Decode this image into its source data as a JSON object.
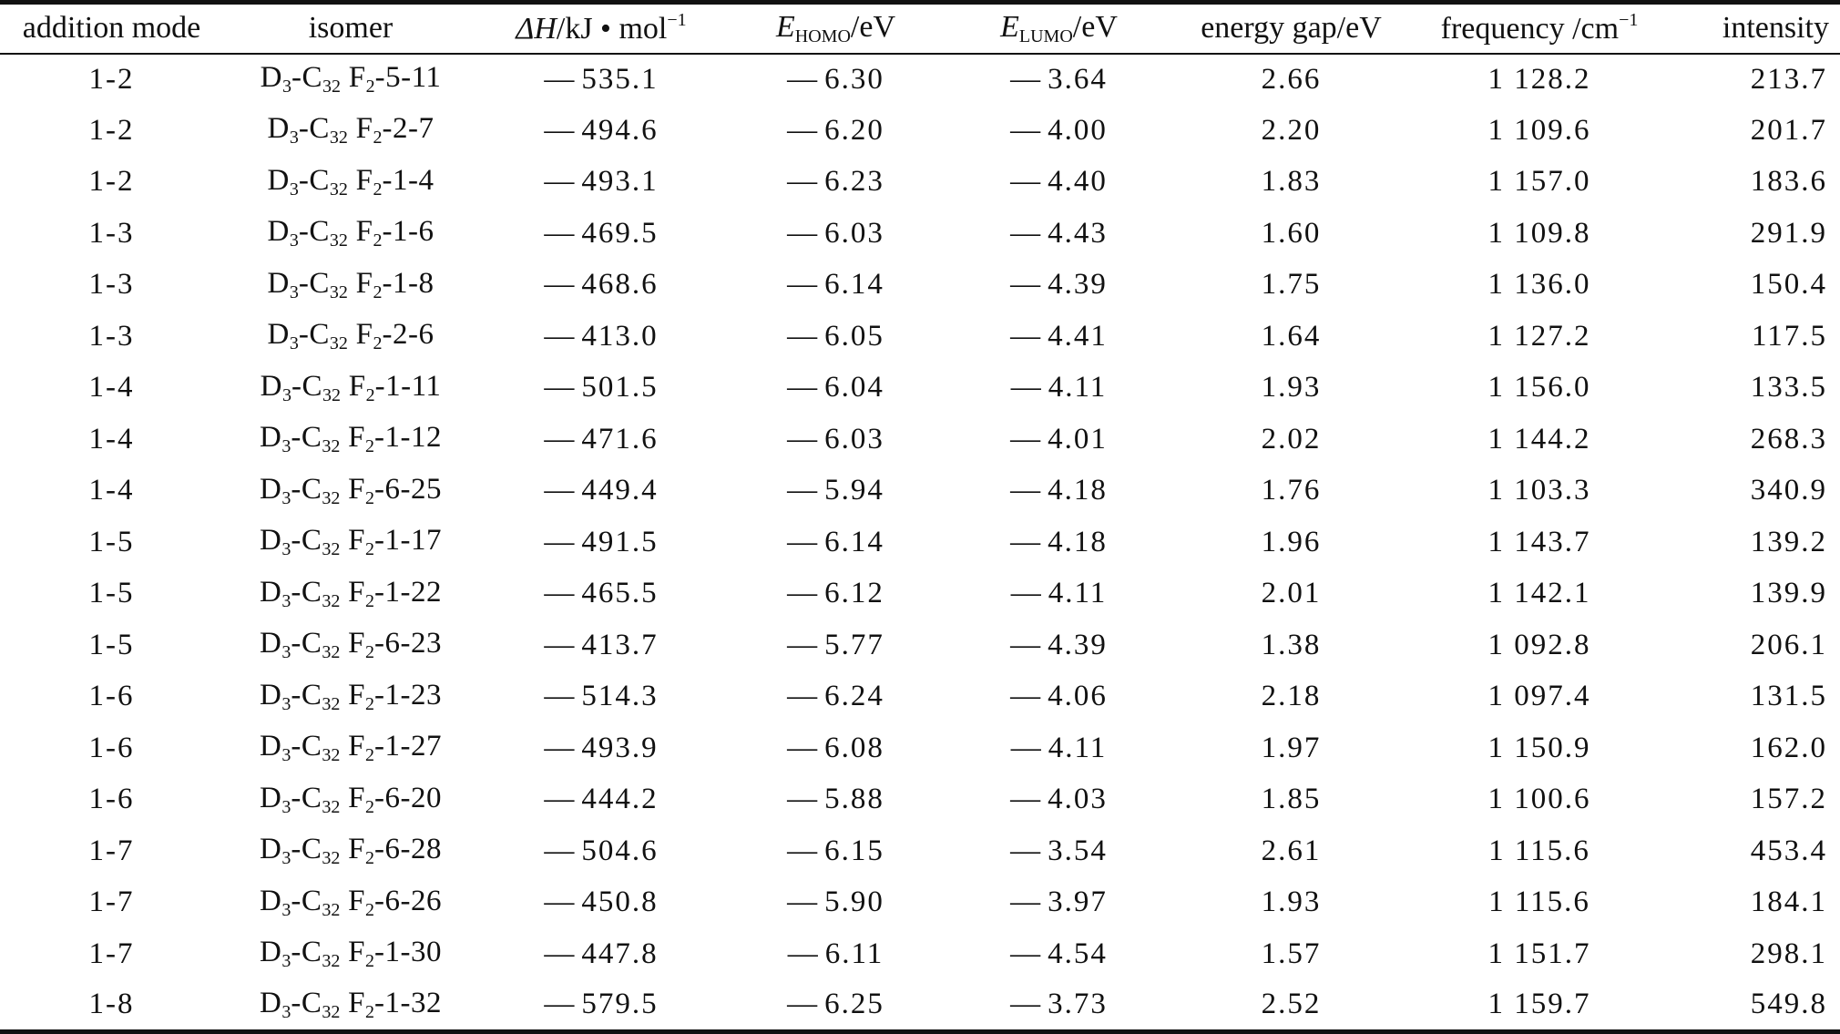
{
  "table": {
    "headers": {
      "addition_mode": "addition mode",
      "isomer": "isomer",
      "dh": {
        "symbol": "ΔH",
        "unit": "/kJ • mol",
        "sup": "−1"
      },
      "homo": {
        "symbol": "E",
        "sub": "HOMO",
        "unit": "/eV"
      },
      "lumo": {
        "symbol": "E",
        "sub": "LUMO",
        "unit": "/eV"
      },
      "gap": "energy gap/eV",
      "freq": {
        "label": "frequency /cm",
        "sup": "−1"
      },
      "intensity": "intensity"
    },
    "isomer_prefix": {
      "d": "D",
      "d_sub": "3",
      "c": "-C",
      "c_sub": "32",
      "f": " F",
      "f_sub": "2"
    },
    "minus_sign": "—",
    "rows": [
      {
        "mode": "1-2",
        "isomer_suffix": "-5-11",
        "dh": "535.1",
        "homo": "6.30",
        "lumo": "3.64",
        "gap": "2.66",
        "freq": "1 128.2",
        "intensity": "213.7"
      },
      {
        "mode": "1-2",
        "isomer_suffix": "-2-7",
        "dh": "494.6",
        "homo": "6.20",
        "lumo": "4.00",
        "gap": "2.20",
        "freq": "1 109.6",
        "intensity": "201.7"
      },
      {
        "mode": "1-2",
        "isomer_suffix": "-1-4",
        "dh": "493.1",
        "homo": "6.23",
        "lumo": "4.40",
        "gap": "1.83",
        "freq": "1 157.0",
        "intensity": "183.6"
      },
      {
        "mode": "1-3",
        "isomer_suffix": "-1-6",
        "dh": "469.5",
        "homo": "6.03",
        "lumo": "4.43",
        "gap": "1.60",
        "freq": "1 109.8",
        "intensity": "291.9"
      },
      {
        "mode": "1-3",
        "isomer_suffix": "-1-8",
        "dh": "468.6",
        "homo": "6.14",
        "lumo": "4.39",
        "gap": "1.75",
        "freq": "1 136.0",
        "intensity": "150.4"
      },
      {
        "mode": "1-3",
        "isomer_suffix": "-2-6",
        "dh": "413.0",
        "homo": "6.05",
        "lumo": "4.41",
        "gap": "1.64",
        "freq": "1 127.2",
        "intensity": "117.5"
      },
      {
        "mode": "1-4",
        "isomer_suffix": "-1-11",
        "dh": "501.5",
        "homo": "6.04",
        "lumo": "4.11",
        "gap": "1.93",
        "freq": "1 156.0",
        "intensity": "133.5"
      },
      {
        "mode": "1-4",
        "isomer_suffix": "-1-12",
        "dh": "471.6",
        "homo": "6.03",
        "lumo": "4.01",
        "gap": "2.02",
        "freq": "1 144.2",
        "intensity": "268.3"
      },
      {
        "mode": "1-4",
        "isomer_suffix": "-6-25",
        "dh": "449.4",
        "homo": "5.94",
        "lumo": "4.18",
        "gap": "1.76",
        "freq": "1 103.3",
        "intensity": "340.9"
      },
      {
        "mode": "1-5",
        "isomer_suffix": "-1-17",
        "dh": "491.5",
        "homo": "6.14",
        "lumo": "4.18",
        "gap": "1.96",
        "freq": "1 143.7",
        "intensity": "139.2"
      },
      {
        "mode": "1-5",
        "isomer_suffix": "-1-22",
        "dh": "465.5",
        "homo": "6.12",
        "lumo": "4.11",
        "gap": "2.01",
        "freq": "1 142.1",
        "intensity": "139.9"
      },
      {
        "mode": "1-5",
        "isomer_suffix": "-6-23",
        "dh": "413.7",
        "homo": "5.77",
        "lumo": "4.39",
        "gap": "1.38",
        "freq": "1 092.8",
        "intensity": "206.1"
      },
      {
        "mode": "1-6",
        "isomer_suffix": "-1-23",
        "dh": "514.3",
        "homo": "6.24",
        "lumo": "4.06",
        "gap": "2.18",
        "freq": "1 097.4",
        "intensity": "131.5"
      },
      {
        "mode": "1-6",
        "isomer_suffix": "-1-27",
        "dh": "493.9",
        "homo": "6.08",
        "lumo": "4.11",
        "gap": "1.97",
        "freq": "1 150.9",
        "intensity": "162.0"
      },
      {
        "mode": "1-6",
        "isomer_suffix": "-6-20",
        "dh": "444.2",
        "homo": "5.88",
        "lumo": "4.03",
        "gap": "1.85",
        "freq": "1 100.6",
        "intensity": "157.2"
      },
      {
        "mode": "1-7",
        "isomer_suffix": "-6-28",
        "dh": "504.6",
        "homo": "6.15",
        "lumo": "3.54",
        "gap": "2.61",
        "freq": "1 115.6",
        "intensity": "453.4"
      },
      {
        "mode": "1-7",
        "isomer_suffix": "-6-26",
        "dh": "450.8",
        "homo": "5.90",
        "lumo": "3.97",
        "gap": "1.93",
        "freq": "1 115.6",
        "intensity": "184.1"
      },
      {
        "mode": "1-7",
        "isomer_suffix": "-1-30",
        "dh": "447.8",
        "homo": "6.11",
        "lumo": "4.54",
        "gap": "1.57",
        "freq": "1 151.7",
        "intensity": "298.1"
      },
      {
        "mode": "1-8",
        "isomer_suffix": "-1-32",
        "dh": "579.5",
        "homo": "6.25",
        "lumo": "3.73",
        "gap": "2.52",
        "freq": "1 159.7",
        "intensity": "549.8"
      }
    ]
  }
}
